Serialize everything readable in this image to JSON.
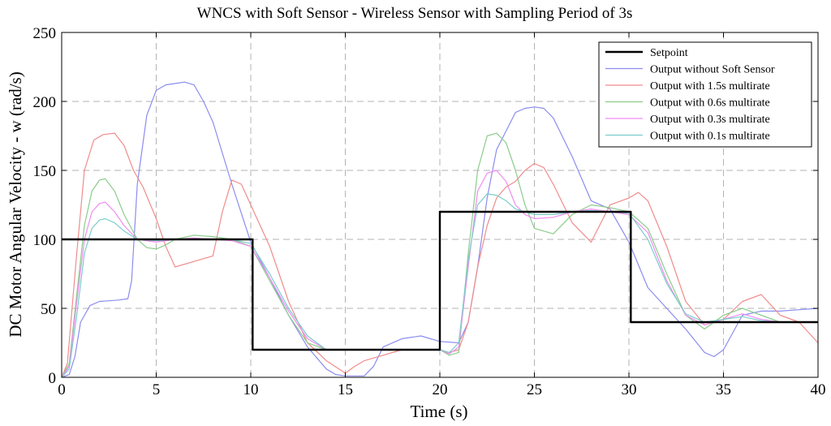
{
  "chart_data": {
    "type": "line",
    "title": "WNCS with Soft Sensor - Wireless Sensor with Sampling Period of 3s",
    "xlabel": "Time (s)",
    "ylabel": "DC Motor Angular Velocity - w (rad/s)",
    "xlim": [
      0,
      40
    ],
    "ylim": [
      0,
      250
    ],
    "xticks": [
      0,
      5,
      10,
      15,
      20,
      25,
      30,
      35,
      40
    ],
    "yticks": [
      0,
      50,
      100,
      150,
      200,
      250
    ],
    "grid": true,
    "legend_position": "top-right",
    "series": [
      {
        "name": "Setpoint",
        "color": "#000000",
        "x": [
          0,
          10.1,
          10.1,
          20,
          20,
          30.1,
          30.1,
          40
        ],
        "y": [
          100,
          100,
          20,
          20,
          120,
          120,
          40,
          40
        ]
      },
      {
        "name": "Output without Soft Sensor",
        "color": "#8c8cf0",
        "x": [
          0,
          0.4,
          0.7,
          1,
          1.5,
          2,
          3,
          3.5,
          3.7,
          4,
          4.5,
          5,
          5.5,
          6,
          6.5,
          7,
          7.5,
          8,
          9,
          10,
          11,
          12,
          13,
          14,
          14.5,
          15,
          16,
          16.5,
          17,
          18,
          19,
          20,
          21,
          21.5,
          22,
          22.5,
          23,
          24,
          24.5,
          25,
          25.5,
          26,
          27,
          28,
          29,
          30,
          31,
          32,
          33,
          34,
          34.5,
          35,
          36,
          37,
          38,
          39,
          40
        ],
        "y": [
          0,
          2,
          15,
          40,
          52,
          55,
          56,
          57,
          70,
          140,
          190,
          208,
          212,
          213,
          214,
          212,
          200,
          185,
          140,
          98,
          72,
          45,
          22,
          6,
          2,
          1,
          1,
          8,
          22,
          28,
          30,
          26,
          25,
          40,
          80,
          130,
          165,
          192,
          195,
          196,
          195,
          188,
          160,
          128,
          122,
          98,
          65,
          50,
          35,
          18,
          15,
          20,
          45,
          48,
          48,
          49,
          50
        ]
      },
      {
        "name": "Output with 1.5s multirate",
        "color": "#f08c8c",
        "x": [
          0,
          0.3,
          0.8,
          1.2,
          1.7,
          2.2,
          2.8,
          3.3,
          3.8,
          4.3,
          5,
          5.5,
          6,
          7,
          8,
          8.5,
          9,
          9.5,
          10,
          10.5,
          11,
          12,
          13,
          14,
          15,
          15.5,
          16,
          17,
          18,
          19,
          20,
          20.5,
          21,
          21.5,
          22,
          22.5,
          23,
          23.5,
          24,
          24.5,
          25,
          25.5,
          26,
          27,
          28,
          29,
          30,
          30.5,
          31,
          32,
          33,
          34,
          35,
          36,
          37,
          38,
          39,
          40
        ],
        "y": [
          0,
          10,
          90,
          150,
          172,
          176,
          177,
          168,
          150,
          138,
          115,
          95,
          80,
          84,
          88,
          120,
          143,
          140,
          125,
          110,
          95,
          55,
          25,
          12,
          3,
          8,
          12,
          16,
          20,
          20,
          20,
          18,
          20,
          40,
          80,
          110,
          130,
          138,
          142,
          150,
          155,
          152,
          140,
          112,
          98,
          125,
          130,
          134,
          128,
          95,
          55,
          38,
          42,
          55,
          60,
          45,
          40,
          25
        ]
      },
      {
        "name": "Output with 0.6s multirate",
        "color": "#8ccc8c",
        "x": [
          0,
          0.4,
          0.8,
          1.2,
          1.6,
          2,
          2.3,
          2.8,
          3.3,
          4,
          4.5,
          5,
          5.5,
          6,
          7,
          8,
          9,
          10,
          11,
          12,
          13,
          14,
          15,
          16,
          17,
          18,
          19,
          20,
          20.5,
          21,
          21.5,
          22,
          22.5,
          23,
          23.5,
          24,
          24.5,
          25,
          26,
          27,
          28,
          29,
          30,
          31,
          32,
          33,
          34,
          35,
          36,
          37,
          38,
          39,
          40
        ],
        "y": [
          0,
          10,
          60,
          110,
          135,
          143,
          144,
          135,
          118,
          100,
          94,
          93,
          96,
          100,
          103,
          102,
          100,
          95,
          70,
          45,
          25,
          20,
          20,
          20,
          20,
          20,
          20,
          20,
          16,
          18,
          90,
          150,
          175,
          177,
          170,
          150,
          125,
          108,
          104,
          118,
          125,
          123,
          120,
          108,
          75,
          45,
          35,
          45,
          50,
          45,
          40,
          40,
          40
        ]
      },
      {
        "name": "Output with 0.3s multirate",
        "color": "#f08cf0",
        "x": [
          0,
          0.4,
          0.8,
          1.2,
          1.6,
          2,
          2.3,
          2.8,
          3.3,
          4,
          5,
          6,
          7,
          8,
          9,
          10,
          11,
          12,
          13,
          14,
          15,
          16,
          17,
          18,
          19,
          20,
          20.5,
          21,
          21.5,
          22,
          22.5,
          23,
          23.5,
          24,
          24.5,
          25,
          26,
          27,
          28,
          29,
          30,
          31,
          32,
          33,
          34,
          35,
          36,
          37,
          38,
          39,
          40
        ],
        "y": [
          0,
          8,
          55,
          100,
          120,
          126,
          127,
          120,
          110,
          100,
          98,
          100,
          101,
          100,
          99,
          95,
          72,
          48,
          28,
          20,
          20,
          20,
          20,
          20,
          20,
          20,
          17,
          22,
          80,
          135,
          148,
          150,
          142,
          125,
          118,
          115,
          116,
          120,
          122,
          120,
          118,
          105,
          70,
          45,
          38,
          42,
          46,
          42,
          40,
          40,
          40
        ]
      },
      {
        "name": "Output with 0.1s multirate",
        "color": "#7ccccc",
        "x": [
          0,
          0.4,
          0.8,
          1.2,
          1.6,
          2,
          2.3,
          2.8,
          3.3,
          4,
          5,
          6,
          7,
          8,
          9,
          10,
          11,
          12,
          13,
          14,
          15,
          16,
          17,
          18,
          19,
          20,
          20.5,
          21,
          21.5,
          22,
          22.5,
          23,
          23.5,
          24,
          25,
          26,
          27,
          28,
          29,
          30,
          31,
          32,
          33,
          34,
          35,
          36,
          37,
          38,
          39,
          40
        ],
        "y": [
          0,
          6,
          45,
          90,
          108,
          114,
          115,
          112,
          106,
          100,
          99,
          100,
          100,
          100,
          100,
          97,
          75,
          50,
          30,
          20,
          20,
          20,
          20,
          20,
          20,
          20,
          18,
          25,
          85,
          125,
          133,
          132,
          128,
          122,
          118,
          118,
          120,
          121,
          120,
          119,
          100,
          68,
          46,
          40,
          42,
          44,
          41,
          40,
          40,
          40
        ]
      }
    ]
  }
}
